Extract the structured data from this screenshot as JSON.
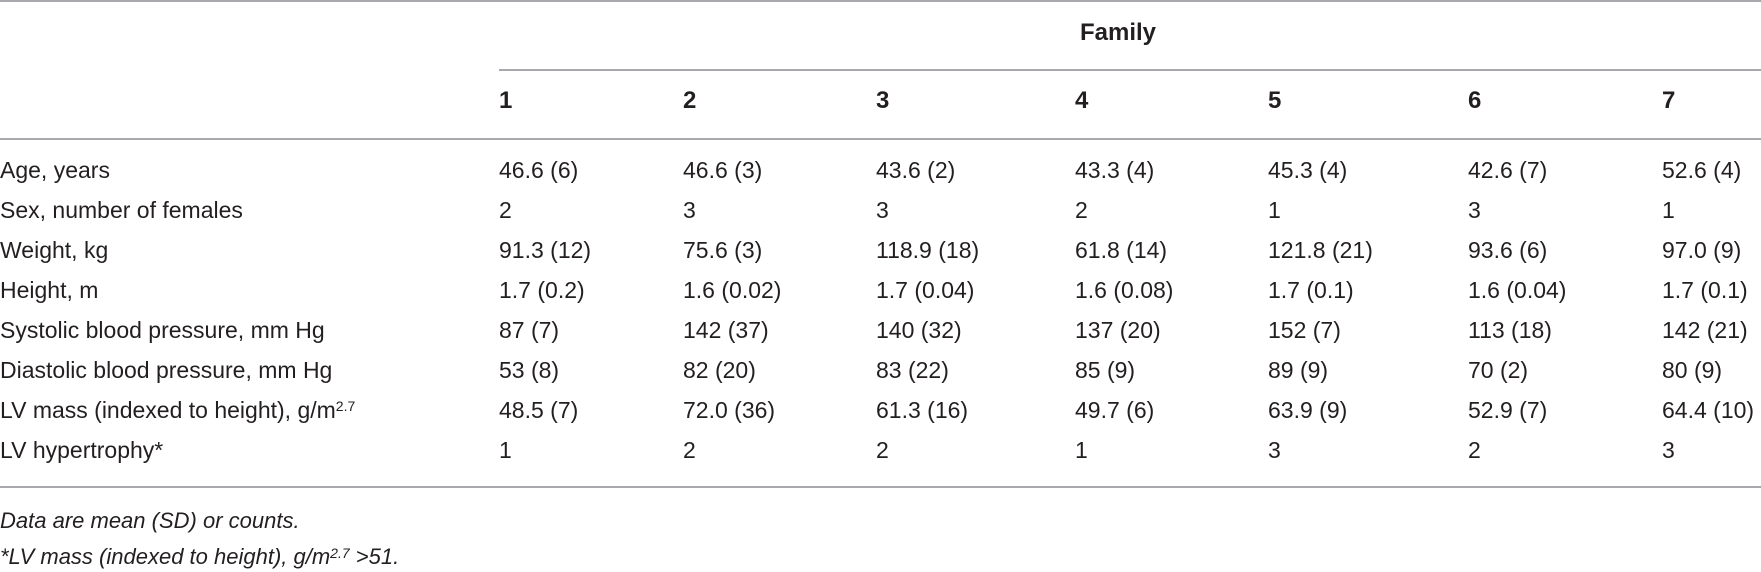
{
  "table": {
    "group_header": "Family",
    "columns": [
      "1",
      "2",
      "3",
      "4",
      "5",
      "6",
      "7"
    ],
    "rows": [
      {
        "label": "Age, years",
        "values": [
          "46.6 (6)",
          "46.6 (3)",
          "43.6 (2)",
          "43.3 (4)",
          "45.3 (4)",
          "42.6 (7)",
          "52.6 (4)"
        ]
      },
      {
        "label": "Sex, number of females",
        "values": [
          "2",
          "3",
          "3",
          "2",
          "1",
          "3",
          "1"
        ]
      },
      {
        "label": "Weight, kg",
        "values": [
          "91.3 (12)",
          "75.6 (3)",
          "118.9 (18)",
          "61.8 (14)",
          "121.8 (21)",
          "93.6 (6)",
          "97.0 (9)"
        ]
      },
      {
        "label": "Height, m",
        "values": [
          "1.7 (0.2)",
          "1.6 (0.02)",
          "1.7 (0.04)",
          "1.6 (0.08)",
          "1.7 (0.1)",
          "1.6 (0.04)",
          "1.7 (0.1)"
        ]
      },
      {
        "label": "Systolic blood pressure, mm Hg",
        "values": [
          "87 (7)",
          "142 (37)",
          "140 (32)",
          "137 (20)",
          "152 (7)",
          "113 (18)",
          "142 (21)"
        ]
      },
      {
        "label": "Diastolic blood pressure, mm Hg",
        "values": [
          "53 (8)",
          "82 (20)",
          "83 (22)",
          "85 (9)",
          "89 (9)",
          "70 (2)",
          "80 (9)"
        ]
      },
      {
        "label": "LV mass (indexed to height), g/m",
        "label_sup": "2.7",
        "values": [
          "48.5 (7)",
          "72.0 (36)",
          "61.3 (16)",
          "49.7 (6)",
          "63.9 (9)",
          "52.9 (7)",
          "64.4 (10)"
        ]
      },
      {
        "label": "LV hypertrophy*",
        "values": [
          "1",
          "2",
          "2",
          "1",
          "3",
          "2",
          "3"
        ]
      }
    ]
  },
  "footnotes": {
    "note1": "Data are mean (SD) or counts.",
    "note2_prefix": "*LV mass (indexed to height), g/m",
    "note2_sup": "2.7",
    "note2_suffix": " >51."
  }
}
